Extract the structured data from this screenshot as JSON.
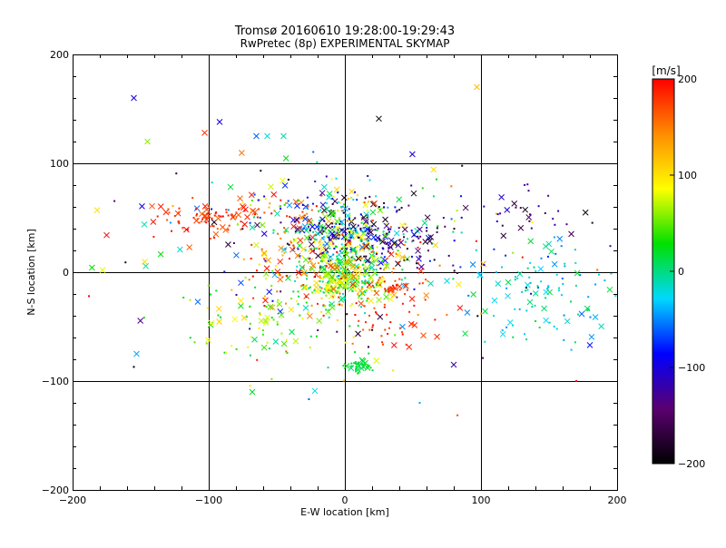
{
  "chart_data": {
    "type": "scatter",
    "title": "Tromsø 20160610 19:28:00-19:29:43",
    "subtitle": "RwPretec (8p) EXPERIMENTAL SKYMAP",
    "xlabel": "E-W location [km]",
    "ylabel": "N-S location [km]",
    "xlim": [
      -200,
      200
    ],
    "ylim": [
      -200,
      200
    ],
    "xticks": [
      "−200",
      "−100",
      "0",
      "100",
      "200"
    ],
    "yticks": [
      "−200",
      "−100",
      "0",
      "100",
      "200"
    ],
    "grid": true,
    "colorbar": {
      "label": "[m/s]",
      "range": [
        -200,
        200
      ],
      "ticks": [
        "−200",
        "−100",
        "0",
        "100",
        "200"
      ],
      "colormap": [
        "#000000",
        "#5a0070",
        "#0000ff",
        "#00d8ff",
        "#00e000",
        "#ffff00",
        "#ff8c00",
        "#ff0000"
      ]
    },
    "marker_types": [
      "dot",
      "cross"
    ],
    "clusters": [
      {
        "cx": 0,
        "cy": 35,
        "sx": 22,
        "sy": 15,
        "vmin": -190,
        "vmax": 120,
        "n": 320
      },
      {
        "cx": 0,
        "cy": -5,
        "sx": 14,
        "sy": 12,
        "vmin": -20,
        "vmax": 110,
        "n": 280
      },
      {
        "cx": -90,
        "cy": 52,
        "sx": 25,
        "sy": 8,
        "vmin": 160,
        "vmax": 200,
        "n": 90
      },
      {
        "cx": 35,
        "cy": 30,
        "sx": 22,
        "sy": 12,
        "vmin": -200,
        "vmax": -80,
        "n": 70
      },
      {
        "cx": 35,
        "cy": -30,
        "sx": 15,
        "sy": 22,
        "vmin": 160,
        "vmax": 200,
        "n": 80
      },
      {
        "cx": 140,
        "cy": -20,
        "sx": 28,
        "sy": 28,
        "vmin": -60,
        "vmax": 20,
        "n": 110
      },
      {
        "cx": 130,
        "cy": 55,
        "sx": 30,
        "sy": 10,
        "vmin": -200,
        "vmax": -100,
        "n": 30
      },
      {
        "cx": -60,
        "cy": -40,
        "sx": 30,
        "sy": 22,
        "vmin": 0,
        "vmax": 110,
        "n": 90
      },
      {
        "cx": 10,
        "cy": -85,
        "sx": 6,
        "sy": 4,
        "vmin": 0,
        "vmax": 30,
        "n": 40
      },
      {
        "cx": -20,
        "cy": 5,
        "sx": 40,
        "sy": 30,
        "vmin": 120,
        "vmax": 200,
        "n": 120
      },
      {
        "cx": -40,
        "cy": 65,
        "sx": 40,
        "sy": 12,
        "vmin": -130,
        "vmax": 200,
        "n": 60
      }
    ],
    "points": [
      {
        "x": -155,
        "y": 160,
        "v": -100,
        "m": "cross"
      },
      {
        "x": 97,
        "y": 170,
        "v": 120,
        "m": "cross"
      },
      {
        "x": -92,
        "y": 138,
        "v": -100,
        "m": "cross"
      },
      {
        "x": -103,
        "y": 128,
        "v": 180,
        "m": "cross"
      },
      {
        "x": -145,
        "y": 120,
        "v": 60,
        "m": "cross"
      },
      {
        "x": -65,
        "y": 125,
        "v": -60,
        "m": "cross"
      },
      {
        "x": -57,
        "y": 125,
        "v": -20,
        "m": "cross"
      },
      {
        "x": -45,
        "y": 125,
        "v": -10,
        "m": "cross"
      },
      {
        "x": 25,
        "y": 141,
        "v": -200,
        "m": "cross"
      },
      {
        "x": -153,
        "y": -75,
        "v": -40,
        "m": "cross"
      },
      {
        "x": -155,
        "y": -87,
        "v": -200,
        "m": "dot"
      },
      {
        "x": 170,
        "y": -100,
        "v": 200,
        "m": "dot"
      },
      {
        "x": 180,
        "y": -67,
        "v": -80,
        "m": "cross"
      },
      {
        "x": 80,
        "y": -85,
        "v": -120,
        "m": "cross"
      },
      {
        "x": -178,
        "y": 2,
        "v": 80,
        "m": "cross"
      },
      {
        "x": -182,
        "y": 57,
        "v": 100,
        "m": "cross"
      },
      {
        "x": -175,
        "y": 34,
        "v": 200,
        "m": "cross"
      },
      {
        "x": -188,
        "y": -22,
        "v": 200,
        "m": "dot"
      },
      {
        "x": -68,
        "y": -110,
        "v": 20,
        "m": "cross"
      },
      {
        "x": -22,
        "y": -109,
        "v": -20,
        "m": "cross"
      },
      {
        "x": 55,
        "y": -120,
        "v": -40,
        "m": "dot"
      },
      {
        "x": 195,
        "y": 24,
        "v": -120,
        "m": "dot"
      }
    ]
  }
}
